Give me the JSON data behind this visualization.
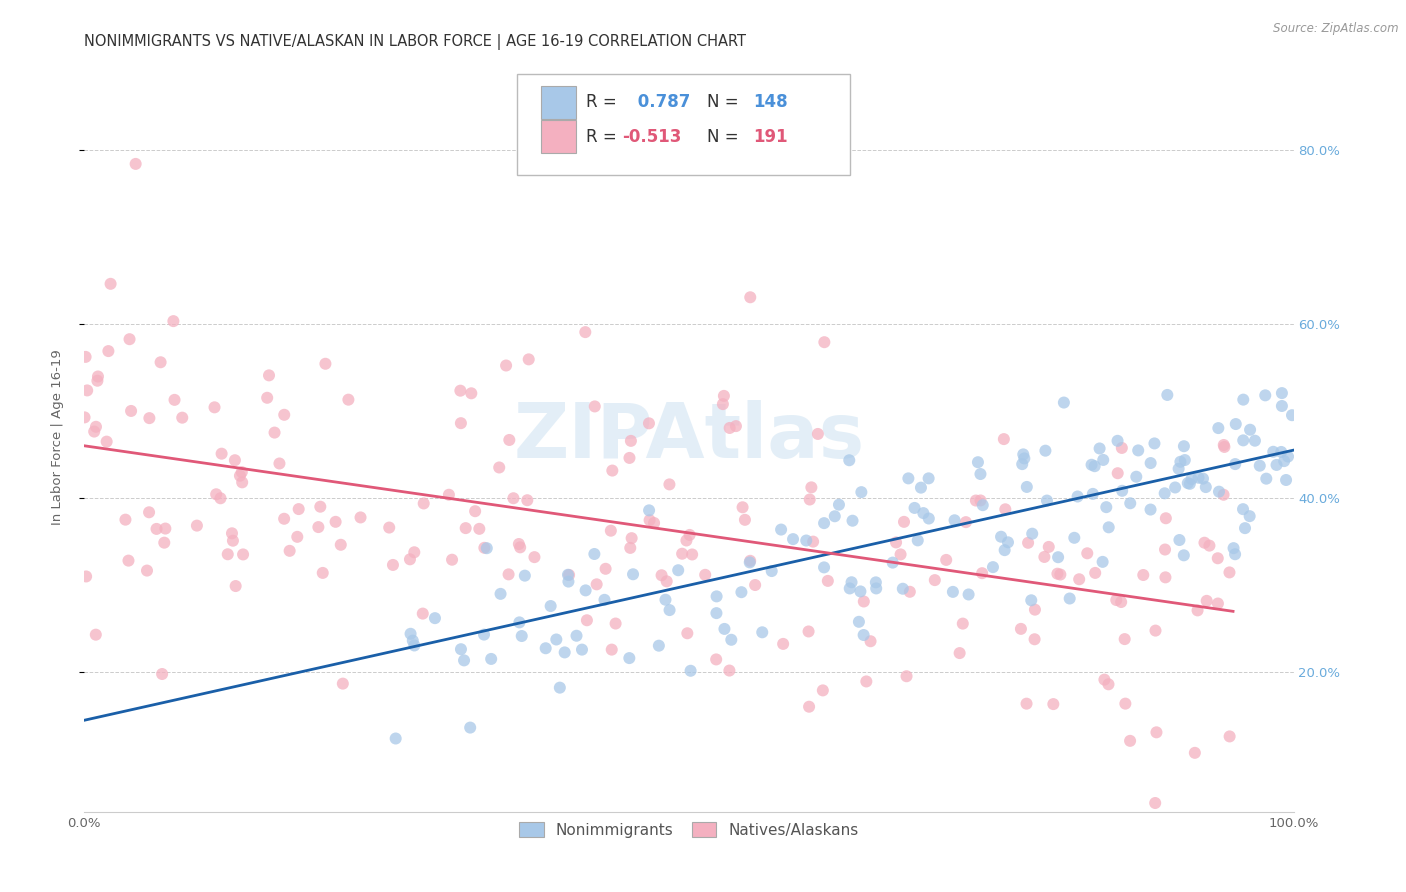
{
  "title": "NONIMMIGRANTS VS NATIVE/ALASKAN IN LABOR FORCE | AGE 16-19 CORRELATION CHART",
  "source": "Source: ZipAtlas.com",
  "ylabel": "In Labor Force | Age 16-19",
  "xlim": [
    0.0,
    1.0
  ],
  "ylim": [
    0.04,
    0.9
  ],
  "xticks": [
    0.0,
    0.2,
    0.4,
    0.6,
    0.8,
    1.0
  ],
  "xticklabels": [
    "0.0%",
    "",
    "",
    "",
    "",
    "100.0%"
  ],
  "yticks": [
    0.2,
    0.4,
    0.6,
    0.8
  ],
  "right_yticklabels": [
    "20.0%",
    "40.0%",
    "60.0%",
    "80.0%"
  ],
  "blue_color": "#a8c8e8",
  "blue_line_color": "#1a5fa8",
  "pink_color": "#f4b0c0",
  "pink_line_color": "#e05878",
  "R_blue": 0.787,
  "N_blue": 148,
  "R_pink": -0.513,
  "N_pink": 191,
  "legend_label_blue": "Nonimmigrants",
  "legend_label_pink": "Natives/Alaskans",
  "watermark": "ZIPAtlas",
  "blue_line_y0": 0.145,
  "blue_line_y1": 0.455,
  "pink_line_y0": 0.46,
  "pink_line_y1": 0.27,
  "title_fontsize": 10.5,
  "tick_fontsize": 9.5,
  "legend_fontsize": 12
}
